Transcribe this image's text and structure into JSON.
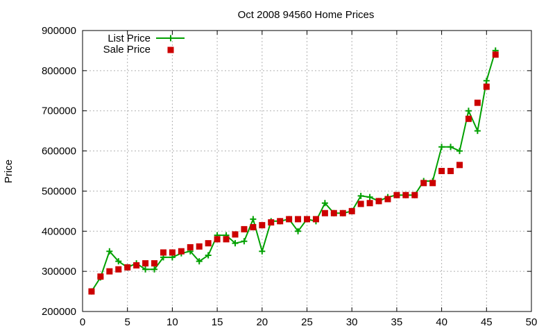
{
  "chart_data": {
    "type": "line",
    "title": "Oct 2008 94560 Home Prices",
    "xlabel": "",
    "ylabel": "Price",
    "xlim": [
      0,
      50
    ],
    "ylim": [
      200000,
      900000
    ],
    "xticks": [
      0,
      5,
      10,
      15,
      20,
      25,
      30,
      35,
      40,
      45,
      50
    ],
    "yticks": [
      200000,
      300000,
      400000,
      500000,
      600000,
      700000,
      800000,
      900000
    ],
    "grid": true,
    "legend_position": "top-left",
    "series": [
      {
        "name": "List Price",
        "style": "line-with-plus-markers",
        "color": "#00a000",
        "x": [
          1,
          2,
          3,
          4,
          5,
          6,
          7,
          8,
          9,
          10,
          11,
          12,
          13,
          14,
          15,
          16,
          17,
          18,
          19,
          20,
          21,
          22,
          23,
          24,
          25,
          26,
          27,
          28,
          29,
          30,
          31,
          32,
          33,
          34,
          35,
          36,
          37,
          38,
          39,
          40,
          41,
          42,
          43,
          44,
          45,
          46
        ],
        "y": [
          250000,
          285000,
          350000,
          325000,
          310000,
          320000,
          305000,
          305000,
          335000,
          335000,
          345000,
          350000,
          325000,
          340000,
          390000,
          390000,
          370000,
          375000,
          430000,
          350000,
          425000,
          425000,
          430000,
          400000,
          430000,
          425000,
          470000,
          445000,
          445000,
          450000,
          488000,
          485000,
          475000,
          485000,
          490000,
          490000,
          490000,
          525000,
          525000,
          610000,
          610000,
          600000,
          700000,
          650000,
          775000,
          850000
        ]
      },
      {
        "name": "Sale Price",
        "style": "square-markers",
        "color": "#cc0000",
        "x": [
          1,
          2,
          3,
          4,
          5,
          6,
          7,
          8,
          9,
          10,
          11,
          12,
          13,
          14,
          15,
          16,
          17,
          18,
          19,
          20,
          21,
          22,
          23,
          24,
          25,
          26,
          27,
          28,
          29,
          30,
          31,
          32,
          33,
          34,
          35,
          36,
          37,
          38,
          39,
          40,
          41,
          42,
          43,
          44,
          45,
          46
        ],
        "y": [
          250000,
          287000,
          300000,
          305000,
          310000,
          315000,
          320000,
          320000,
          347000,
          347000,
          350000,
          360000,
          362000,
          370000,
          380000,
          380000,
          392000,
          405000,
          410000,
          415000,
          422000,
          425000,
          430000,
          430000,
          430000,
          430000,
          445000,
          445000,
          445000,
          450000,
          468000,
          470000,
          475000,
          480000,
          490000,
          490000,
          490000,
          520000,
          520000,
          550000,
          550000,
          565000,
          680000,
          720000,
          760000,
          840000
        ]
      }
    ]
  }
}
